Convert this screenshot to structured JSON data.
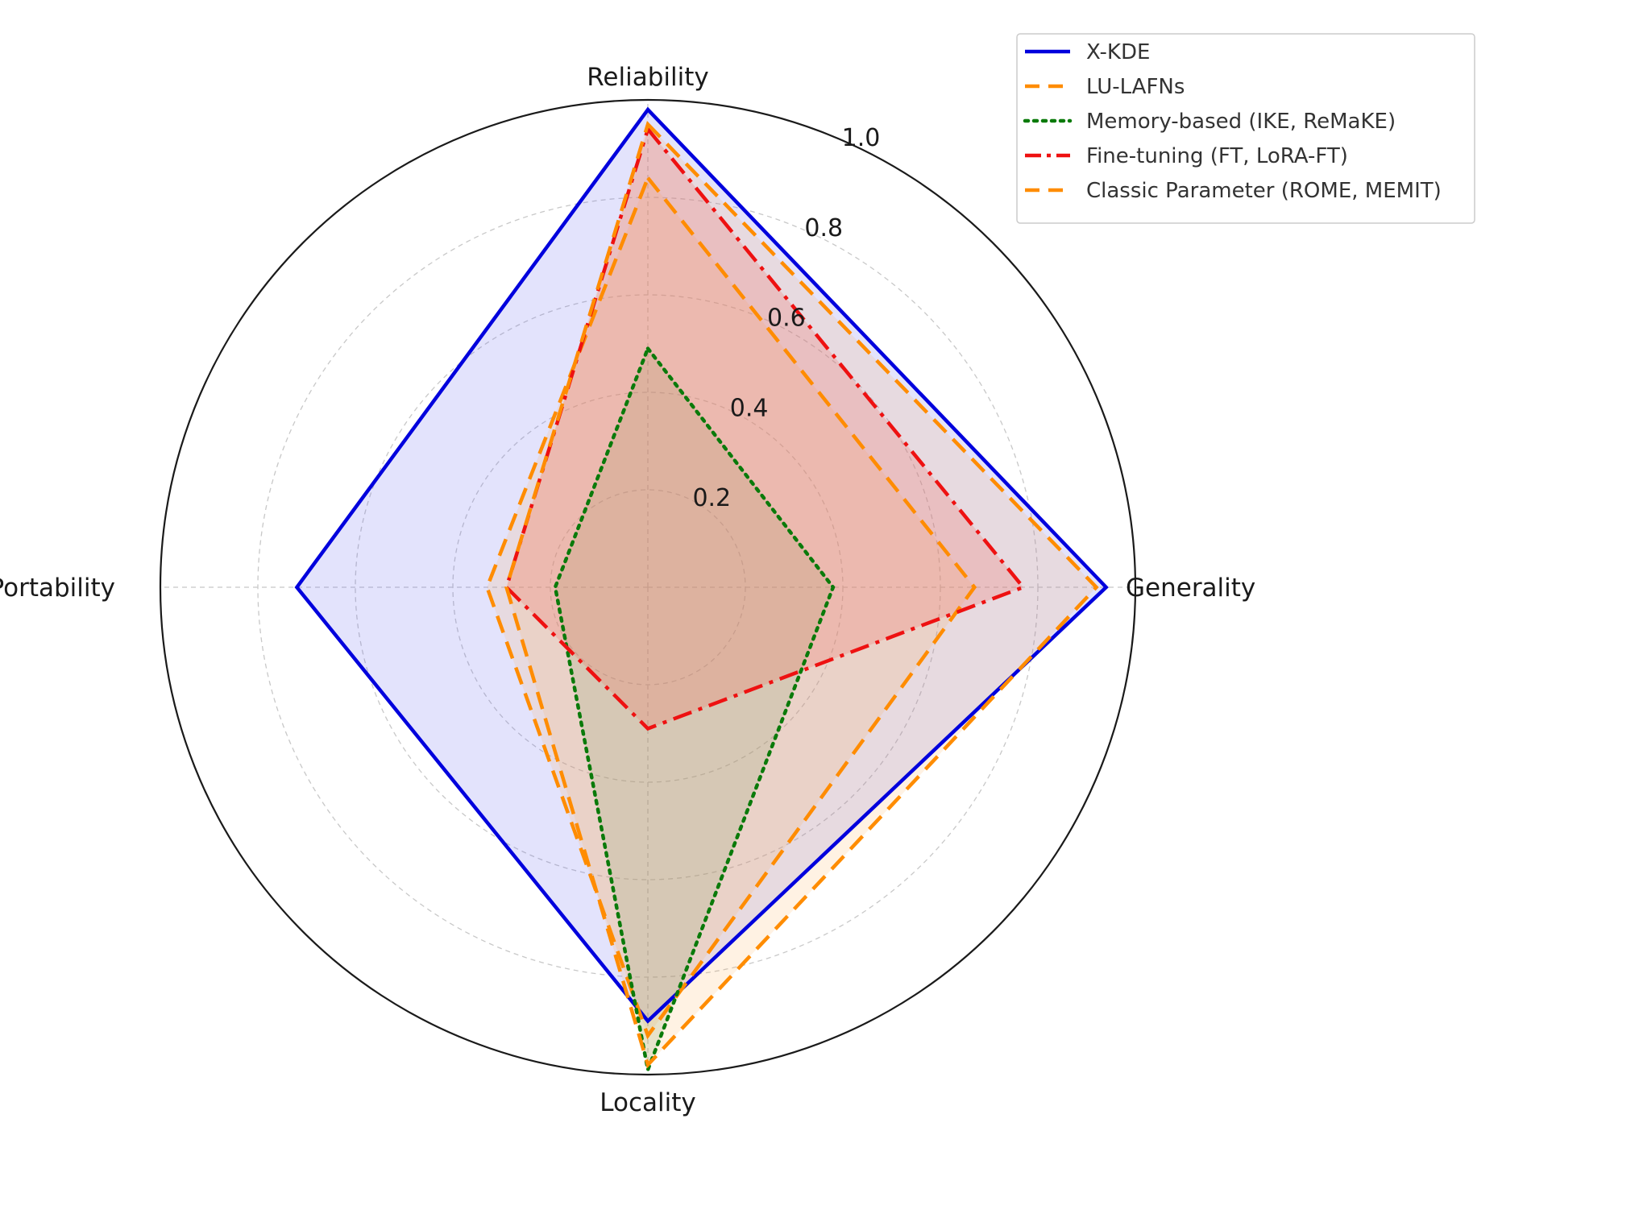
{
  "chart_data": {
    "type": "radar",
    "axes": [
      "Reliability",
      "Generality",
      "Locality",
      "Portability"
    ],
    "rlim": [
      0,
      1.0
    ],
    "ticks": [
      0.2,
      0.4,
      0.6,
      0.8,
      1.0
    ],
    "tick_labels": [
      "0.2",
      "0.4",
      "0.6",
      "0.8",
      "1.0"
    ],
    "grid": true,
    "legend_position": "top-right",
    "series": [
      {
        "name": "X-KDE",
        "values": [
          0.98,
          0.94,
          0.89,
          0.72
        ],
        "color": "#0000dd",
        "fill": "#6666ee",
        "fill_opacity": 0.18,
        "dash": "solid"
      },
      {
        "name": "LU-LAFNs",
        "values": [
          0.84,
          0.67,
          0.92,
          0.33
        ],
        "color": "#ff8c00",
        "fill": "#ffaa44",
        "fill_opacity": 0.15,
        "dash": "dashed"
      },
      {
        "name": "Memory-based (IKE, ReMaKE)",
        "values": [
          0.49,
          0.38,
          0.99,
          0.19
        ],
        "color": "#0a7a0a",
        "fill": "#669966",
        "fill_opacity": 0.18,
        "dash": "dotted"
      },
      {
        "name": "Fine-tuning (FT, LoRA-FT)",
        "values": [
          0.94,
          0.77,
          0.29,
          0.29
        ],
        "color": "#ee1111",
        "fill": "#ee6666",
        "fill_opacity": 0.25,
        "dash": "dashdot"
      },
      {
        "name": "Classic Parameter (ROME, MEMIT)",
        "values": [
          0.95,
          0.92,
          0.98,
          0.29
        ],
        "color": "#ff8c00",
        "fill": "#ffaa44",
        "fill_opacity": 0.15,
        "dash": "dashed"
      }
    ]
  }
}
